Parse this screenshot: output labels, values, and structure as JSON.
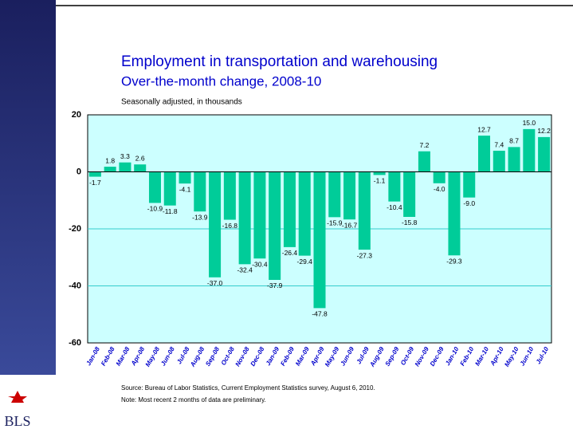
{
  "logo": "BLS",
  "chart_data": {
    "type": "bar",
    "title": "Employment in transportation and warehousing",
    "subtitle": "Over-the-month change, 2008-10",
    "y_label": "Seasonally adjusted, in thousands",
    "source": "Source:  Bureau of Labor Statistics, Current Employment Statistics survey, August 6, 2010.",
    "note": "Note:  Most recent 2 months of data are preliminary.",
    "categories": [
      "Jan-08",
      "Feb-08",
      "Mar-08",
      "Apr-08",
      "May-08",
      "Jun-08",
      "Jul-08",
      "Aug-08",
      "Sep-08",
      "Oct-08",
      "Nov-08",
      "Dec-08",
      "Jan-09",
      "Feb-09",
      "Mar-09",
      "Apr-09",
      "May-09",
      "Jun-09",
      "Jul-09",
      "Aug-09",
      "Sep-09",
      "Oct-09",
      "Nov-09",
      "Dec-09",
      "Jan-10",
      "Feb-10",
      "Mar-10",
      "Apr-10",
      "May-10",
      "Jun-10",
      "Jul-10"
    ],
    "values": [
      -1.7,
      1.8,
      3.3,
      2.6,
      -10.9,
      -11.8,
      -4.1,
      -13.9,
      -37.0,
      -16.8,
      -32.4,
      -30.4,
      -37.9,
      -26.4,
      -29.4,
      -47.8,
      -15.9,
      -16.7,
      -27.3,
      -1.1,
      -10.4,
      -15.8,
      7.2,
      -4.0,
      -29.3,
      -9.0,
      12.7,
      7.4,
      8.7,
      15.0,
      12.2
    ],
    "value_labels": [
      "-1.7",
      "1.8",
      "3.3",
      "2.6",
      "-10.9",
      "-11.8",
      "-4.1",
      "-13.9",
      "-37.0",
      "-16.8",
      "-32.4",
      "-30.4",
      "-37.9",
      "-26.4",
      "-29.4",
      "-47.8",
      "-15.9",
      "-16.7",
      "-27.3",
      "-1.1",
      "-10.4",
      "-15.8",
      "7.2",
      "-4.0",
      "-29.3",
      "-9.0",
      "12.7",
      "7.4",
      "8.7",
      "15.0",
      "12.2"
    ],
    "color": "#00cc99",
    "ylim": [
      -60,
      20
    ],
    "yticks": [
      -60,
      -40,
      -20,
      0,
      20
    ],
    "grid": true
  }
}
